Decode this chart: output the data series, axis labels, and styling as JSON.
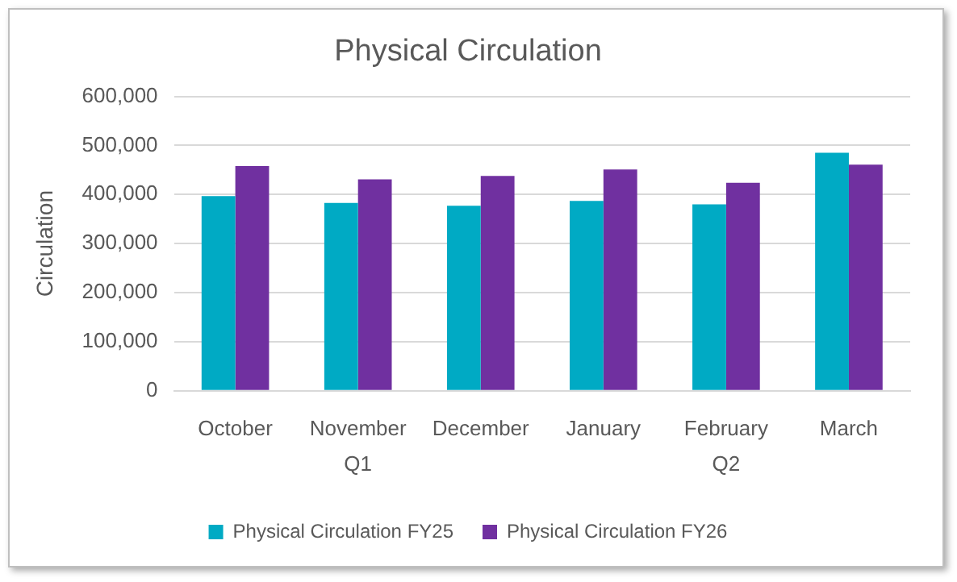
{
  "chart_data": {
    "type": "bar",
    "title": "Physical Circulation",
    "ylabel": "Circulation",
    "categories": [
      "October",
      "November",
      "December",
      "January",
      "February",
      "March"
    ],
    "series": [
      {
        "name": "Physical Circulation FY25",
        "color": "#00aac4",
        "values": [
          397000,
          383000,
          377000,
          387000,
          380000,
          485000
        ]
      },
      {
        "name": "Physical Circulation FY26",
        "color": "#7030a0",
        "values": [
          458000,
          431000,
          438000,
          451000,
          424000,
          461000
        ]
      }
    ],
    "ylim": [
      0,
      600000
    ],
    "yticks": [
      0,
      {
        "value": 100000,
        "label": "100,000"
      },
      {
        "value": 200000,
        "label": "200,000"
      },
      {
        "value": 300000,
        "label": "300,000"
      },
      {
        "value": 400000,
        "label": "400,000"
      },
      {
        "value": 500000,
        "label": "500,000"
      },
      {
        "value": 600000,
        "label": "600,000"
      }
    ],
    "grid": "y",
    "legend": "bottom",
    "annotations": [
      "Q1",
      "Q2"
    ]
  }
}
